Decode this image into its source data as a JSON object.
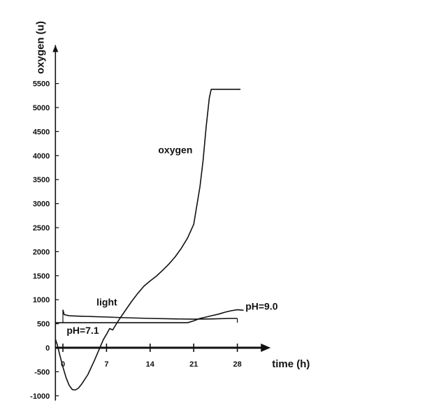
{
  "chart_data": {
    "type": "line",
    "xlabel": "time (h)",
    "ylabel": "oxygen (u)",
    "xlim": [
      -1.2,
      32
    ],
    "ylim": [
      -1100,
      6300
    ],
    "x_ticks": [
      0,
      7,
      14,
      21,
      28
    ],
    "y_ticks": [
      -1000,
      -500,
      0,
      500,
      1000,
      1500,
      2000,
      2500,
      3000,
      3500,
      4000,
      4500,
      5000,
      5500
    ],
    "grid": false,
    "colors": {
      "line": "#111111",
      "axis": "#111111"
    },
    "series": [
      {
        "name": "oxygen",
        "x": [
          -1.2,
          -0.9,
          -0.5,
          0,
          0.5,
          1,
          1.5,
          2,
          2.5,
          3,
          4,
          5,
          6,
          6.5,
          7,
          7.5,
          8,
          8.5,
          9,
          10,
          11,
          12,
          13,
          14,
          15,
          16,
          17,
          18,
          19,
          20,
          21,
          22,
          22.5,
          23,
          23.5,
          23.8,
          24,
          28.5
        ],
        "y": [
          180,
          60,
          -150,
          -400,
          -620,
          -780,
          -870,
          -880,
          -840,
          -760,
          -560,
          -280,
          20,
          170,
          280,
          400,
          370,
          480,
          580,
          770,
          960,
          1130,
          1280,
          1390,
          1490,
          1610,
          1740,
          1890,
          2070,
          2280,
          2570,
          3350,
          3900,
          4600,
          5200,
          5380,
          5380,
          5380
        ]
      },
      {
        "name": "light",
        "x": [
          0,
          0.2,
          1,
          3,
          7,
          10,
          14,
          18,
          21,
          24,
          27,
          28
        ],
        "y": [
          790,
          690,
          665,
          655,
          640,
          625,
          610,
          600,
          595,
          600,
          610,
          610
        ]
      },
      {
        "name": "pH",
        "x": [
          -1.2,
          20,
          21,
          22,
          23,
          24,
          25,
          26,
          27,
          28,
          29
        ],
        "y": [
          520,
          520,
          560,
          610,
          640,
          670,
          700,
          740,
          770,
          790,
          780
        ]
      }
    ],
    "annotations": [
      {
        "text": "oxygen",
        "x": 15.3,
        "y": 4050
      },
      {
        "text": "light",
        "x": 5.4,
        "y": 880
      },
      {
        "text": "pH=9.0",
        "x": 29.3,
        "y": 790
      },
      {
        "text": "pH=7.1",
        "x": 0.6,
        "y": 290
      }
    ],
    "reference_lines": [
      {
        "x": 0,
        "from": 520,
        "to": 790
      },
      {
        "x": 28,
        "from": 520,
        "to": 610
      }
    ]
  }
}
